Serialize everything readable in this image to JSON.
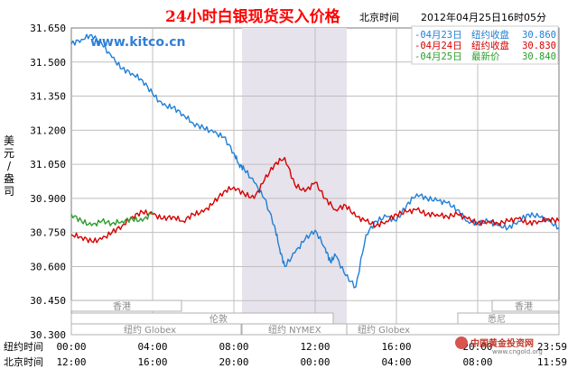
{
  "header": {
    "title": "24小时白银现货买入价格",
    "timezone_label": "北京时间",
    "timestamp": "2012年04月25日16时05分"
  },
  "watermark": "www.kitco.cn",
  "y_axis_label": "美元/盎司",
  "row_labels": {
    "ny": "纽约时间",
    "bj": "北京时间"
  },
  "market_labels": {
    "hongkong": "香港",
    "london": "伦敦",
    "ny_globex_1": "纽约 Globex",
    "ny_nymex": "纽约 NYMEX",
    "ny_globex_2": "纽约 Globex",
    "sydney": "悉尼",
    "hongkong_2": "香港"
  },
  "logo": {
    "main": "中国黄金投资网",
    "sub": "www.cngold.org"
  },
  "colors": {
    "apr23": "#1f7fd6",
    "apr24": "#d60000",
    "apr25": "#2a9d2a",
    "grid": "#bfbfbf",
    "nymex_band": "#e6e3ec",
    "axis": "#7a7a7a"
  },
  "chart_data": {
    "type": "line",
    "title": "24小时白银现货买入价格",
    "ylabel": "美元/盎司",
    "xlabel": "",
    "ylim": [
      30.3,
      31.65
    ],
    "yticks": [
      "31.650",
      "31.500",
      "31.350",
      "31.200",
      "31.050",
      "30.900",
      "30.750",
      "30.600",
      "30.450",
      "30.300"
    ],
    "xlim_hours_ny": [
      0,
      24
    ],
    "xticks_ny": [
      "00:00",
      "04:00",
      "08:00",
      "12:00",
      "16:00",
      "20:00",
      "23:59"
    ],
    "xticks_bj": [
      "12:00",
      "16:00",
      "20:00",
      "00:00",
      "04:00",
      "08:00",
      "11:59"
    ],
    "grid": true,
    "legend_position": "top-right",
    "legend": [
      {
        "date": "04月23日",
        "label": "纽约收盘",
        "value": "30.860",
        "color": "#1f7fd6"
      },
      {
        "date": "04月24日",
        "label": "纽约收盘",
        "value": "30.830",
        "color": "#d60000"
      },
      {
        "date": "04月25日",
        "label": "最新价",
        "value": "30.840",
        "color": "#2a9d2a"
      }
    ],
    "series": [
      {
        "name": "04月23日",
        "color": "#1f7fd6",
        "x": [
          0,
          0.5,
          1,
          1.5,
          2,
          2.5,
          3,
          3.5,
          4,
          4.5,
          5,
          5.5,
          6,
          6.5,
          7,
          7.5,
          8,
          8.25,
          8.5,
          9,
          9.5,
          10,
          10.25,
          10.5,
          11,
          11.5,
          12,
          12.5,
          12.75,
          13,
          13.5,
          14,
          14.5,
          15,
          15.5,
          16,
          16.5,
          17,
          17.5,
          18,
          18.5,
          19,
          19.5,
          20,
          20.5,
          21,
          21.5,
          22,
          22.5,
          23,
          23.5,
          23.99
        ],
        "y": [
          31.58,
          31.6,
          31.62,
          31.58,
          31.52,
          31.47,
          31.45,
          31.42,
          31.36,
          31.31,
          31.3,
          31.27,
          31.23,
          31.21,
          31.19,
          31.17,
          31.1,
          31.05,
          31.03,
          30.97,
          30.9,
          30.78,
          30.68,
          30.6,
          30.66,
          30.72,
          30.76,
          30.68,
          30.62,
          30.65,
          30.56,
          30.51,
          30.74,
          30.8,
          30.82,
          30.8,
          30.87,
          30.92,
          30.9,
          30.89,
          30.88,
          30.85,
          30.8,
          30.79,
          30.8,
          30.78,
          30.77,
          30.8,
          30.83,
          30.82,
          30.8,
          30.77
        ]
      },
      {
        "name": "04月24日",
        "color": "#d60000",
        "x": [
          0,
          0.5,
          1,
          1.5,
          2,
          2.5,
          3,
          3.5,
          4,
          4.5,
          5,
          5.5,
          6,
          6.5,
          7,
          7.5,
          8,
          8.5,
          9,
          9.5,
          10,
          10.5,
          11,
          11.5,
          12,
          12.5,
          13,
          13.5,
          14,
          14.5,
          15,
          15.5,
          16,
          16.5,
          17,
          17.5,
          18,
          18.5,
          19,
          19.5,
          20,
          20.5,
          21,
          21.5,
          22,
          22.5,
          23,
          23.5,
          23.99
        ],
        "y": [
          30.74,
          30.73,
          30.71,
          30.72,
          30.75,
          30.78,
          30.82,
          30.84,
          30.83,
          30.81,
          30.82,
          30.8,
          30.83,
          30.84,
          30.88,
          30.93,
          30.95,
          30.92,
          30.9,
          30.98,
          31.05,
          31.08,
          30.96,
          30.93,
          30.97,
          30.9,
          30.85,
          30.87,
          30.82,
          30.8,
          30.78,
          30.8,
          30.83,
          30.84,
          30.85,
          30.83,
          30.83,
          30.82,
          30.83,
          30.81,
          30.79,
          30.8,
          30.79,
          30.8,
          30.81,
          30.79,
          30.8,
          30.81,
          30.8
        ]
      },
      {
        "name": "04月25日",
        "color": "#2a9d2a",
        "x": [
          0,
          0.5,
          1,
          1.5,
          2,
          2.5,
          3,
          3.5,
          4
        ],
        "y": [
          30.83,
          30.8,
          30.78,
          30.8,
          30.79,
          30.8,
          30.81,
          30.8,
          30.84
        ]
      }
    ]
  }
}
